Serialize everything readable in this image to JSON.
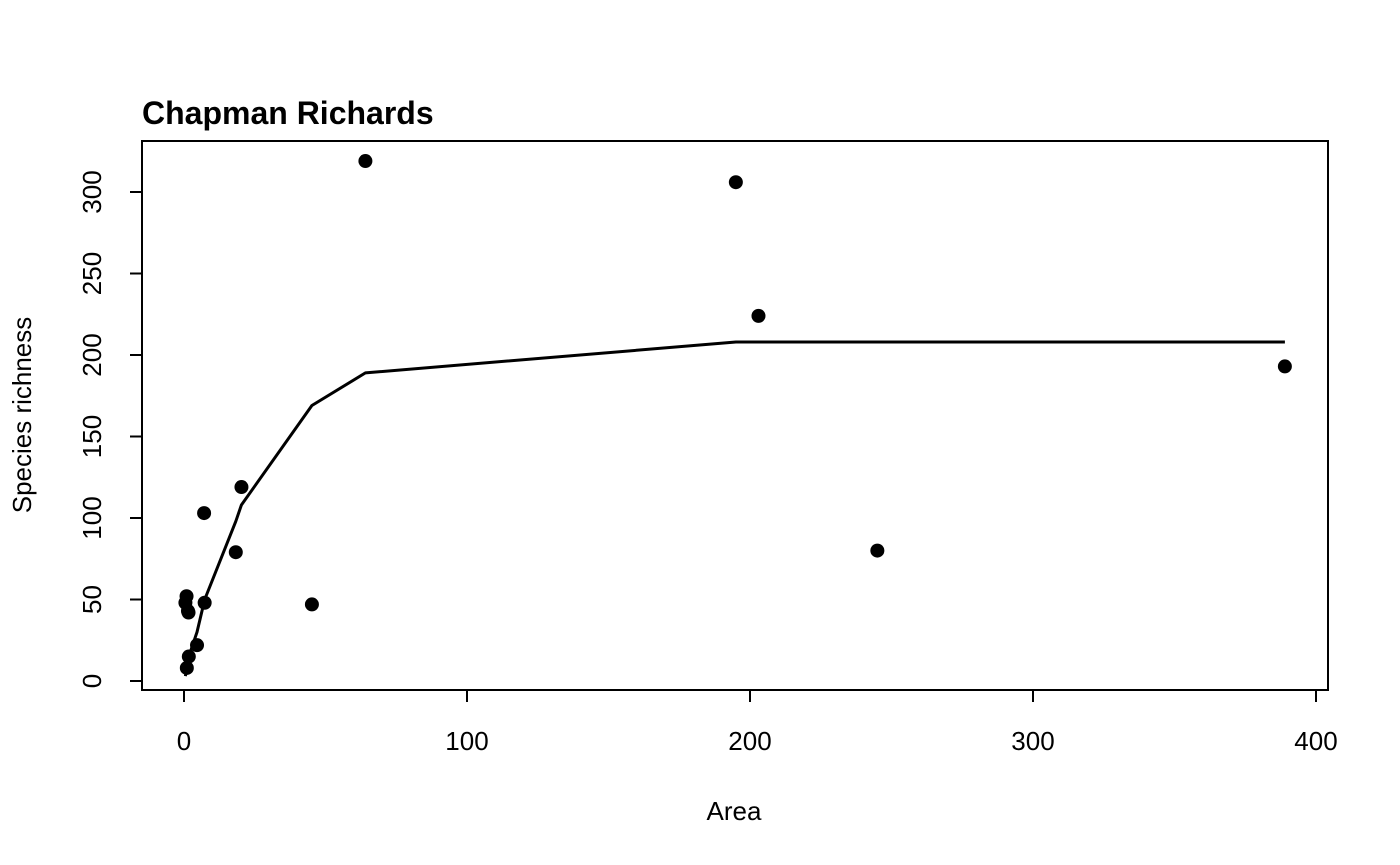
{
  "chart_data": {
    "type": "scatter",
    "title": "Chapman Richards",
    "xlabel": "Area",
    "ylabel": "Species richness",
    "xlim": [
      -15,
      405
    ],
    "ylim": [
      -5,
      330
    ],
    "x_ticks": [
      0,
      100,
      200,
      300,
      400
    ],
    "y_ticks": [
      0,
      50,
      100,
      150,
      200,
      250,
      300
    ],
    "grid": false,
    "legend": "none",
    "colors": {
      "points": "#000000",
      "line": "#000000",
      "frame": "#000000",
      "background": "#ffffff"
    },
    "series": [
      {
        "type": "scatter",
        "points": [
          [
            0.5,
            48
          ],
          [
            0.9,
            52
          ],
          [
            1.4,
            43
          ],
          [
            1.6,
            42
          ],
          [
            1.0,
            8
          ],
          [
            1.7,
            15
          ],
          [
            4.6,
            22
          ],
          [
            7.3,
            48
          ],
          [
            7.1,
            103
          ],
          [
            18.3,
            79
          ],
          [
            20.3,
            119
          ],
          [
            45.2,
            47
          ],
          [
            64.1,
            319
          ],
          [
            195.0,
            306
          ],
          [
            203.0,
            224
          ],
          [
            245.0,
            80
          ],
          [
            389.0,
            193
          ]
        ]
      },
      {
        "type": "line",
        "points": [
          [
            0.5,
            3
          ],
          [
            1.0,
            8
          ],
          [
            1.4,
            12
          ],
          [
            1.7,
            15
          ],
          [
            4.6,
            30
          ],
          [
            7.3,
            50
          ],
          [
            18.3,
            98
          ],
          [
            20.3,
            108
          ],
          [
            45.2,
            169
          ],
          [
            64.1,
            189
          ],
          [
            195.0,
            208
          ],
          [
            203.0,
            208
          ],
          [
            245.0,
            208
          ],
          [
            389.0,
            208
          ]
        ]
      }
    ]
  }
}
